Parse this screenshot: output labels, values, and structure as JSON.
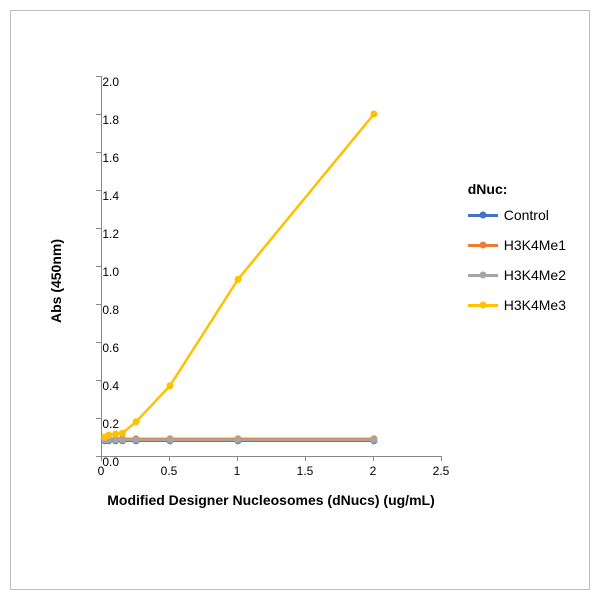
{
  "chart": {
    "type": "line",
    "xlabel": "Modified Designer Nucleosomes (dNucs) (ug/mL)",
    "ylabel": "Abs (450nm)",
    "xlim": [
      0,
      2.5
    ],
    "ylim": [
      0,
      2.0
    ],
    "xtick_step": 0.5,
    "ytick_step": 0.2,
    "xticks": [
      0,
      0.5,
      1.0,
      1.5,
      2.0,
      2.5
    ],
    "yticks": [
      0.0,
      0.2,
      0.4,
      0.6,
      0.8,
      1.0,
      1.2,
      1.4,
      1.6,
      1.8,
      2.0
    ],
    "background_color": "#ffffff",
    "axis_color": "#888888",
    "tick_fontsize": 12,
    "label_fontsize": 14,
    "label_fontweight": "bold",
    "line_width": 2.5,
    "marker_style": "circle",
    "marker_size": 7,
    "legend_title": "dNuc:",
    "legend_position": "right",
    "series": [
      {
        "name": "Control",
        "color": "#4472c4",
        "x": [
          0.02,
          0.05,
          0.1,
          0.15,
          0.25,
          0.5,
          1.0,
          2.0
        ],
        "y": [
          0.08,
          0.08,
          0.08,
          0.08,
          0.08,
          0.08,
          0.08,
          0.08
        ]
      },
      {
        "name": "H3K4Me1",
        "color": "#ed7d31",
        "x": [
          0.02,
          0.05,
          0.1,
          0.15,
          0.25,
          0.5,
          1.0,
          2.0
        ],
        "y": [
          0.09,
          0.09,
          0.09,
          0.09,
          0.09,
          0.09,
          0.09,
          0.09
        ]
      },
      {
        "name": "H3K4Me2",
        "color": "#a5a5a5",
        "x": [
          0.02,
          0.05,
          0.1,
          0.15,
          0.25,
          0.5,
          1.0,
          2.0
        ],
        "y": [
          0.085,
          0.085,
          0.085,
          0.085,
          0.085,
          0.085,
          0.085,
          0.085
        ]
      },
      {
        "name": "H3K4Me3",
        "color": "#ffc000",
        "x": [
          0.02,
          0.05,
          0.1,
          0.15,
          0.25,
          0.5,
          1.0,
          2.0
        ],
        "y": [
          0.1,
          0.11,
          0.115,
          0.12,
          0.18,
          0.37,
          0.93,
          1.8
        ]
      }
    ]
  }
}
